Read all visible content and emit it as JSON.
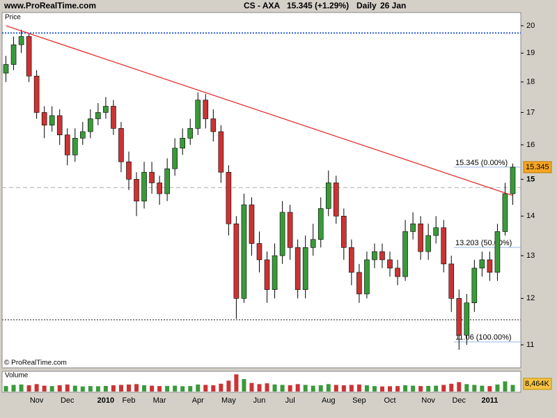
{
  "chart_data": {
    "type": "candlestick",
    "site": "www.ProRealTime.com",
    "symbol": "CS - AXA",
    "quote": "15.345 (+1.29%)",
    "period": "Daily",
    "date": "26 Jan",
    "panel_label": "Price",
    "copyright": "© ProRealTime.com",
    "log_scale": true,
    "ylim": [
      10.55,
      20.5
    ],
    "yticks": [
      11,
      12,
      13,
      14,
      15,
      16,
      17,
      18,
      19,
      20
    ],
    "up_color": "#3a9a3a",
    "down_color": "#cc3333",
    "categories": [
      null,
      null,
      null,
      null,
      "Nov",
      null,
      null,
      null,
      "Dec",
      null,
      null,
      null,
      null,
      "2010",
      null,
      null,
      "Feb",
      null,
      null,
      null,
      "Mar",
      null,
      null,
      null,
      null,
      "Apr",
      null,
      null,
      null,
      "May",
      null,
      null,
      null,
      "Jun",
      null,
      null,
      null,
      "Jul",
      null,
      null,
      null,
      null,
      "Aug",
      null,
      null,
      null,
      "Sep",
      null,
      null,
      null,
      "Oct",
      null,
      null,
      null,
      null,
      "Nov",
      null,
      null,
      null,
      "Dec",
      null,
      null,
      null,
      "2011",
      null,
      null,
      null
    ],
    "open": [
      18.3,
      18.6,
      19.3,
      19.6,
      18.2,
      17.0,
      16.6,
      16.9,
      16.3,
      15.7,
      16.2,
      16.4,
      16.8,
      17.0,
      17.2,
      16.5,
      15.5,
      15.0,
      14.4,
      15.2,
      14.9,
      14.6,
      15.3,
      15.9,
      16.2,
      16.5,
      17.4,
      16.8,
      16.4,
      15.2,
      13.8,
      12.0,
      14.3,
      13.3,
      12.9,
      12.2,
      13.0,
      14.1,
      13.2,
      12.2,
      13.2,
      13.4,
      14.2,
      14.9,
      14.0,
      13.2,
      12.6,
      12.1,
      12.9,
      13.1,
      12.9,
      12.7,
      12.5,
      13.6,
      13.8,
      13.1,
      13.5,
      13.7,
      12.8,
      12.0,
      11.2,
      11.9,
      12.7,
      12.9,
      12.6,
      13.6,
      14.6
    ],
    "high": [
      18.9,
      19.6,
      19.85,
      19.7,
      18.4,
      17.2,
      17.2,
      17.1,
      16.5,
      16.5,
      16.7,
      17.1,
      17.3,
      17.5,
      17.4,
      16.7,
      15.8,
      15.2,
      15.5,
      15.5,
      15.1,
      15.6,
      16.2,
      16.5,
      16.8,
      17.65,
      17.6,
      17.1,
      16.6,
      15.4,
      14.0,
      14.6,
      14.5,
      13.6,
      13.1,
      13.3,
      14.4,
      14.3,
      13.4,
      13.5,
      13.8,
      14.5,
      15.25,
      15.1,
      14.2,
      13.4,
      12.8,
      13.1,
      13.3,
      13.3,
      13.1,
      12.9,
      13.9,
      14.1,
      14.0,
      13.8,
      14.0,
      13.9,
      13.0,
      12.2,
      12.1,
      12.9,
      13.1,
      13.1,
      13.8,
      14.9,
      15.45
    ],
    "low": [
      18.0,
      18.4,
      19.0,
      18.0,
      16.8,
      16.2,
      16.4,
      16.0,
      15.4,
      15.5,
      16.0,
      16.2,
      16.6,
      16.8,
      16.3,
      15.2,
      14.7,
      14.0,
      14.2,
      14.6,
      14.3,
      14.4,
      15.1,
      15.7,
      16.0,
      16.3,
      16.5,
      16.1,
      14.9,
      13.5,
      11.55,
      11.9,
      13.0,
      12.6,
      11.9,
      12.0,
      12.8,
      12.9,
      12.0,
      12.0,
      13.0,
      13.2,
      14.0,
      13.8,
      12.9,
      12.3,
      11.9,
      12.0,
      12.7,
      12.7,
      12.5,
      12.3,
      12.4,
      13.4,
      12.9,
      12.9,
      13.3,
      12.6,
      11.7,
      10.9,
      11.0,
      11.7,
      12.5,
      12.4,
      12.4,
      13.5,
      14.3
    ],
    "close": [
      18.6,
      19.3,
      19.6,
      18.2,
      17.0,
      16.6,
      16.9,
      16.3,
      15.7,
      16.2,
      16.4,
      16.8,
      17.0,
      17.2,
      16.5,
      15.5,
      15.0,
      14.4,
      15.2,
      14.9,
      14.6,
      15.3,
      15.9,
      16.2,
      16.5,
      17.4,
      16.8,
      16.4,
      15.2,
      13.8,
      12.0,
      14.3,
      13.3,
      12.9,
      12.2,
      13.0,
      14.1,
      13.2,
      12.2,
      13.2,
      13.4,
      14.2,
      14.9,
      14.0,
      13.2,
      12.6,
      12.1,
      12.9,
      13.1,
      12.9,
      12.7,
      12.5,
      13.6,
      13.8,
      13.1,
      13.5,
      13.7,
      12.8,
      12.0,
      11.2,
      11.9,
      12.7,
      12.9,
      12.6,
      13.6,
      14.6,
      15.345
    ],
    "trendline": {
      "color": "#e02020",
      "values": [
        20.0,
        14.55
      ]
    },
    "levels": [
      {
        "value": 19.73,
        "color": "#2a5bd7",
        "style": "dotted"
      },
      {
        "value": 14.77,
        "color": "#aaaaaa",
        "style": "dashed"
      },
      {
        "value": 11.53,
        "color": "#888888",
        "style": "dotted"
      }
    ],
    "fib": [
      {
        "value": 15.345,
        "label": "15.345 (0.00%)"
      },
      {
        "value": 13.203,
        "label": "13.203 (50.00%)"
      },
      {
        "value": 11.06,
        "label": "11.06 (100.00%)"
      }
    ],
    "volume": {
      "name": "Volume",
      "ylim": [
        0,
        25000
      ],
      "values": [
        7000,
        8500,
        9000,
        8000,
        9500,
        7500,
        7000,
        8000,
        9000,
        7500,
        6500,
        7000,
        6800,
        7200,
        8000,
        8500,
        9000,
        9500,
        8000,
        7500,
        7000,
        7200,
        7500,
        6800,
        7000,
        9000,
        8500,
        8000,
        10000,
        14000,
        22000,
        16000,
        11000,
        9500,
        10500,
        9000,
        8500,
        8000,
        9500,
        8500,
        7500,
        8000,
        9500,
        8500,
        8000,
        8500,
        9000,
        8000,
        7000,
        6500,
        6800,
        7000,
        8000,
        7500,
        7000,
        7200,
        7500,
        8500,
        10000,
        12000,
        9500,
        8500,
        7500,
        7000,
        9000,
        13000,
        8464
      ],
      "last_label": "8,464K"
    }
  }
}
